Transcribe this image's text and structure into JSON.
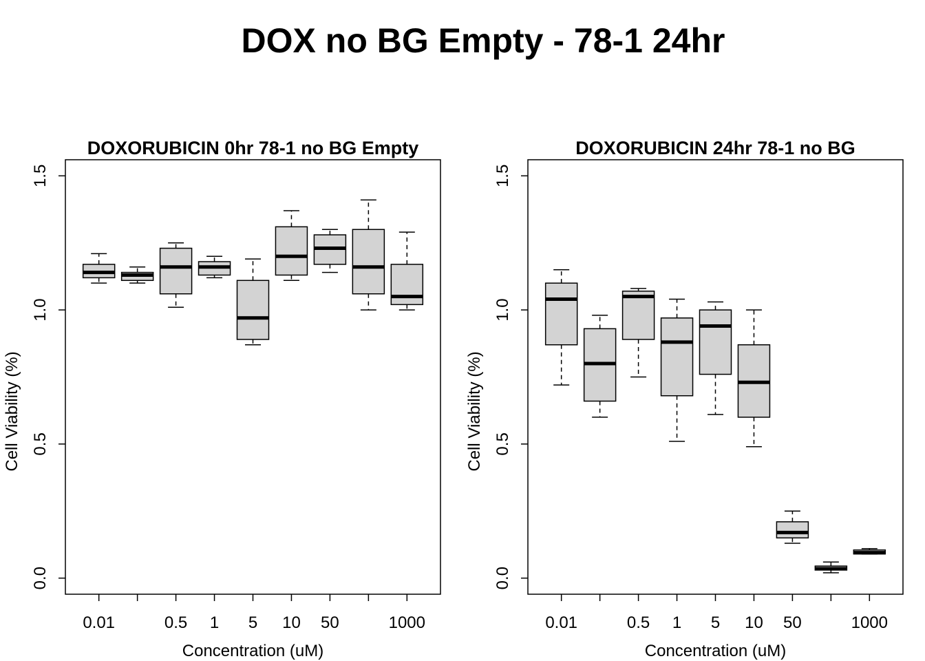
{
  "figure_title": "DOX no BG Empty - 78-1 24hr",
  "chart_data": [
    {
      "type": "boxplot",
      "title": "DOXORUBICIN 0hr 78-1 no BG Empty",
      "xlabel": "Concentration (uM)",
      "ylabel": "Cell Viability (%)",
      "ylim": [
        0.0,
        1.5
      ],
      "yticks": [
        "0.0",
        "0.5",
        "1.0",
        "1.5"
      ],
      "categories": [
        "0.01",
        "",
        "0.5",
        "1",
        "5",
        "10",
        "50",
        "",
        "1000"
      ],
      "box_fill": "#d3d3d3",
      "boxes": [
        {
          "whisker_low": 1.1,
          "q1": 1.12,
          "median": 1.14,
          "q3": 1.17,
          "whisker_high": 1.21
        },
        {
          "whisker_low": 1.1,
          "q1": 1.11,
          "median": 1.13,
          "q3": 1.14,
          "whisker_high": 1.16
        },
        {
          "whisker_low": 1.01,
          "q1": 1.06,
          "median": 1.16,
          "q3": 1.23,
          "whisker_high": 1.25
        },
        {
          "whisker_low": 1.12,
          "q1": 1.13,
          "median": 1.16,
          "q3": 1.18,
          "whisker_high": 1.2
        },
        {
          "whisker_low": 0.87,
          "q1": 0.89,
          "median": 0.97,
          "q3": 1.11,
          "whisker_high": 1.19
        },
        {
          "whisker_low": 1.11,
          "q1": 1.13,
          "median": 1.2,
          "q3": 1.31,
          "whisker_high": 1.37
        },
        {
          "whisker_low": 1.14,
          "q1": 1.17,
          "median": 1.23,
          "q3": 1.28,
          "whisker_high": 1.3
        },
        {
          "whisker_low": 1.0,
          "q1": 1.06,
          "median": 1.16,
          "q3": 1.3,
          "whisker_high": 1.41
        },
        {
          "whisker_low": 1.0,
          "q1": 1.02,
          "median": 1.05,
          "q3": 1.17,
          "whisker_high": 1.29
        }
      ]
    },
    {
      "type": "boxplot",
      "title": "DOXORUBICIN 24hr 78-1 no BG",
      "xlabel": "Concentration (uM)",
      "ylabel": "Cell Viability (%)",
      "ylim": [
        0.0,
        1.5
      ],
      "yticks": [
        "0.0",
        "0.5",
        "1.0",
        "1.5"
      ],
      "categories": [
        "0.01",
        "",
        "0.5",
        "1",
        "5",
        "10",
        "50",
        "",
        "1000"
      ],
      "box_fill": "#d3d3d3",
      "boxes": [
        {
          "whisker_low": 0.72,
          "q1": 0.87,
          "median": 1.04,
          "q3": 1.1,
          "whisker_high": 1.15
        },
        {
          "whisker_low": 0.6,
          "q1": 0.66,
          "median": 0.8,
          "q3": 0.93,
          "whisker_high": 0.98
        },
        {
          "whisker_low": 0.75,
          "q1": 0.89,
          "median": 1.05,
          "q3": 1.07,
          "whisker_high": 1.08
        },
        {
          "whisker_low": 0.51,
          "q1": 0.68,
          "median": 0.88,
          "q3": 0.97,
          "whisker_high": 1.04
        },
        {
          "whisker_low": 0.61,
          "q1": 0.76,
          "median": 0.94,
          "q3": 1.0,
          "whisker_high": 1.03
        },
        {
          "whisker_low": 0.49,
          "q1": 0.6,
          "median": 0.73,
          "q3": 0.87,
          "whisker_high": 1.0
        },
        {
          "whisker_low": 0.13,
          "q1": 0.15,
          "median": 0.17,
          "q3": 0.21,
          "whisker_high": 0.25
        },
        {
          "whisker_low": 0.02,
          "q1": 0.03,
          "median": 0.035,
          "q3": 0.045,
          "whisker_high": 0.06
        },
        {
          "whisker_low": 0.09,
          "q1": 0.09,
          "median": 0.095,
          "q3": 0.105,
          "whisker_high": 0.11
        }
      ]
    }
  ]
}
